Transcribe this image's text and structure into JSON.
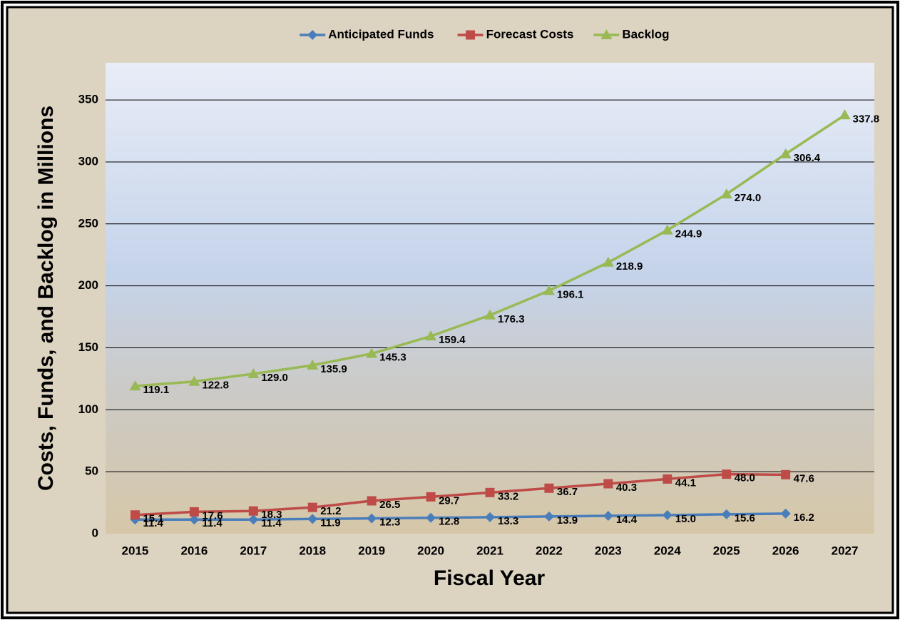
{
  "chart_data": {
    "type": "line",
    "legend": "top",
    "x_label": "Fiscal  Year",
    "y_label": "Costs, Funds, and Backlog in Millions",
    "categories": [
      "2015",
      "2016",
      "2017",
      "2018",
      "2019",
      "2020",
      "2021",
      "2022",
      "2023",
      "2024",
      "2025",
      "2026",
      "2027"
    ],
    "series": [
      {
        "name": "Anticipated Funds",
        "color": "#4a7ebb",
        "marker": "diamond",
        "values": [
          11.4,
          11.4,
          11.4,
          11.9,
          12.3,
          12.8,
          13.3,
          13.9,
          14.4,
          15.0,
          15.6,
          16.2,
          null
        ],
        "value_labels": [
          "11.4",
          "11.4",
          "11.4",
          "11.9",
          "12.3",
          "12.8",
          "13.3",
          "13.9",
          "14.4",
          "15.0",
          "15.6",
          "16.2",
          null
        ]
      },
      {
        "name": "Forecast Costs",
        "color": "#be4b48",
        "marker": "square",
        "values": [
          15.1,
          17.6,
          18.3,
          21.2,
          26.5,
          29.7,
          33.2,
          36.7,
          40.3,
          44.1,
          48.0,
          47.6,
          null
        ],
        "value_labels": [
          "15.1",
          "17.6",
          "18.3",
          "21.2",
          "26.5",
          "29.7",
          "33.2",
          "36.7",
          "40.3",
          "44.1",
          "48.0",
          "47.6",
          null
        ]
      },
      {
        "name": "Backlog",
        "color": "#98b954",
        "marker": "triangle",
        "values": [
          119.1,
          122.8,
          129.0,
          135.9,
          145.3,
          159.4,
          176.3,
          196.1,
          218.9,
          244.9,
          274.0,
          306.4,
          337.8
        ],
        "value_labels": [
          "119.1",
          "122.8",
          "129.0",
          "135.9",
          "145.3",
          "159.4",
          "176.3",
          "196.1",
          "218.9",
          "244.9",
          "274.0",
          "306.4",
          "337.8"
        ]
      }
    ],
    "ylim": [
      0,
      380
    ],
    "yticks": [
      0,
      50,
      100,
      150,
      200,
      250,
      300,
      350
    ],
    "grid": true
  }
}
